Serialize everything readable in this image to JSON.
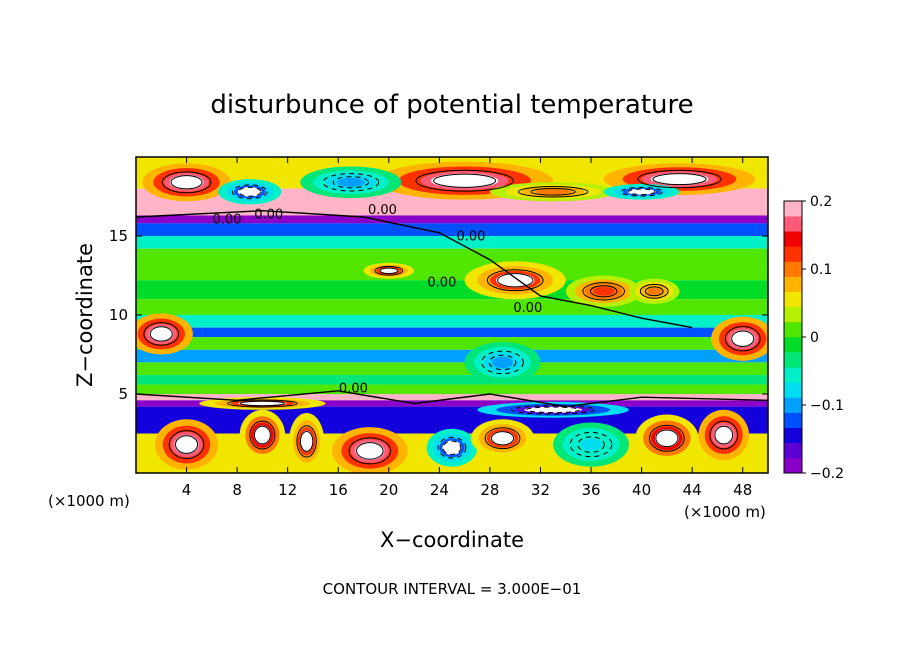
{
  "chart_data": {
    "type": "heatmap",
    "title": "disturbunce of potential temperature",
    "xlabel": "X−coordinate",
    "ylabel": "Z−coordinate",
    "x_unit_left": "(×1000 m)",
    "x_unit_right": "(×1000 m)",
    "xlim": [
      0,
      50
    ],
    "ylim": [
      0,
      20
    ],
    "x_ticks": [
      4,
      8,
      12,
      16,
      20,
      24,
      28,
      32,
      36,
      40,
      44,
      48
    ],
    "y_ticks": [
      5,
      10,
      15
    ],
    "colorbar": {
      "range": [
        -0.2,
        0.2
      ],
      "ticks": [
        {
          "value": 0.2,
          "label": "0.2"
        },
        {
          "value": 0.1,
          "label": "0.1"
        },
        {
          "value": 0,
          "label": "0"
        },
        {
          "value": -0.1,
          "label": "−0.1"
        },
        {
          "value": -0.2,
          "label": "−0.2"
        }
      ],
      "colors": [
        "#8b00c8",
        "#5a00d2",
        "#1400dc",
        "#0050ff",
        "#00a0ff",
        "#00dcf0",
        "#00f0c8",
        "#00e678",
        "#00dc28",
        "#50e600",
        "#b4f000",
        "#f0e600",
        "#ffb400",
        "#ff7800",
        "#ff3200",
        "#f00000",
        "#ff5a78",
        "#ffb4c8"
      ]
    },
    "contour_labels": [
      "0.00",
      "0.00",
      "0.00",
      "0.00",
      "0.00",
      "0.00",
      "0.00"
    ],
    "footer": "CONTOUR INTERVAL = 3.000E−01",
    "bands": [
      {
        "z": [
          18.0,
          20.0
        ],
        "value": 0.05
      },
      {
        "z": [
          16.3,
          18.0
        ],
        "value": 0.18
      },
      {
        "z": [
          15.8,
          16.3
        ],
        "value": -0.2
      },
      {
        "z": [
          15.0,
          15.8
        ],
        "value": -0.12
      },
      {
        "z": [
          14.2,
          15.0
        ],
        "value": -0.06
      },
      {
        "z": [
          13.2,
          14.2
        ],
        "value": 0.0
      },
      {
        "z": [
          12.2,
          13.2
        ],
        "value": 0.02
      },
      {
        "z": [
          11.0,
          12.2
        ],
        "value": -0.02
      },
      {
        "z": [
          10.0,
          11.0
        ],
        "value": 0.01
      },
      {
        "z": [
          9.2,
          10.0
        ],
        "value": -0.06
      },
      {
        "z": [
          8.6,
          9.2
        ],
        "value": -0.12
      },
      {
        "z": [
          7.8,
          8.6
        ],
        "value": 0.0
      },
      {
        "z": [
          7.0,
          7.8
        ],
        "value": -0.1
      },
      {
        "z": [
          6.2,
          7.0
        ],
        "value": 0.01
      },
      {
        "z": [
          5.6,
          6.2
        ],
        "value": -0.04
      },
      {
        "z": [
          5.0,
          5.6
        ],
        "value": 0.02
      },
      {
        "z": [
          4.6,
          5.0
        ],
        "value": 0.18
      },
      {
        "z": [
          4.2,
          4.6
        ],
        "value": -0.2
      },
      {
        "z": [
          2.5,
          4.2
        ],
        "value": -0.15
      },
      {
        "z": [
          0.0,
          2.5
        ],
        "value": 0.05
      }
    ],
    "features": [
      {
        "x": 26,
        "z": 18.5,
        "rx": 7,
        "rz": 1.2,
        "value": 0.2
      },
      {
        "x": 43,
        "z": 18.6,
        "rx": 6,
        "rz": 1.0,
        "value": 0.2
      },
      {
        "x": 4,
        "z": 18.4,
        "rx": 3.5,
        "rz": 1.2,
        "value": 0.2
      },
      {
        "x": 9,
        "z": 17.8,
        "rx": 2.5,
        "rz": 0.8,
        "value": -0.15
      },
      {
        "x": 17,
        "z": 18.4,
        "rx": 4,
        "rz": 1.0,
        "value": -0.1
      },
      {
        "x": 33,
        "z": 17.8,
        "rx": 5,
        "rz": 0.6,
        "value": 0.1
      },
      {
        "x": 40,
        "z": 17.8,
        "rx": 3,
        "rz": 0.5,
        "value": -0.15
      },
      {
        "x": 30,
        "z": 12.2,
        "rx": 4,
        "rz": 1.2,
        "value": 0.15
      },
      {
        "x": 37,
        "z": 11.5,
        "rx": 3,
        "rz": 1.0,
        "value": 0.12
      },
      {
        "x": 41,
        "z": 11.5,
        "rx": 2,
        "rz": 0.8,
        "value": 0.1
      },
      {
        "x": 20,
        "z": 12.8,
        "rx": 2,
        "rz": 0.5,
        "value": 0.15
      },
      {
        "x": 2,
        "z": 8.8,
        "rx": 2.5,
        "rz": 1.3,
        "value": 0.2
      },
      {
        "x": 48,
        "z": 8.5,
        "rx": 2.5,
        "rz": 1.4,
        "value": 0.2
      },
      {
        "x": 29,
        "z": 7.0,
        "rx": 3,
        "rz": 1.3,
        "value": -0.1
      },
      {
        "x": 4,
        "z": 1.8,
        "rx": 2.5,
        "rz": 1.6,
        "value": 0.2
      },
      {
        "x": 10,
        "z": 2.4,
        "rx": 1.8,
        "rz": 1.6,
        "value": 0.18
      },
      {
        "x": 13.5,
        "z": 2.0,
        "rx": 1.4,
        "rz": 1.8,
        "value": 0.15
      },
      {
        "x": 18.5,
        "z": 1.4,
        "rx": 3,
        "rz": 1.5,
        "value": 0.2
      },
      {
        "x": 25,
        "z": 1.6,
        "rx": 2,
        "rz": 1.2,
        "value": -0.15
      },
      {
        "x": 29,
        "z": 2.2,
        "rx": 2.5,
        "rz": 1.2,
        "value": 0.15
      },
      {
        "x": 36,
        "z": 1.8,
        "rx": 3,
        "rz": 1.4,
        "value": -0.08
      },
      {
        "x": 42,
        "z": 2.2,
        "rx": 2.5,
        "rz": 1.5,
        "value": 0.18
      },
      {
        "x": 46.5,
        "z": 2.4,
        "rx": 2,
        "rz": 1.6,
        "value": 0.2
      },
      {
        "x": 33,
        "z": 4.0,
        "rx": 6,
        "rz": 0.5,
        "value": -0.2
      },
      {
        "x": 10,
        "z": 4.4,
        "rx": 5,
        "rz": 0.4,
        "value": 0.15
      }
    ]
  }
}
